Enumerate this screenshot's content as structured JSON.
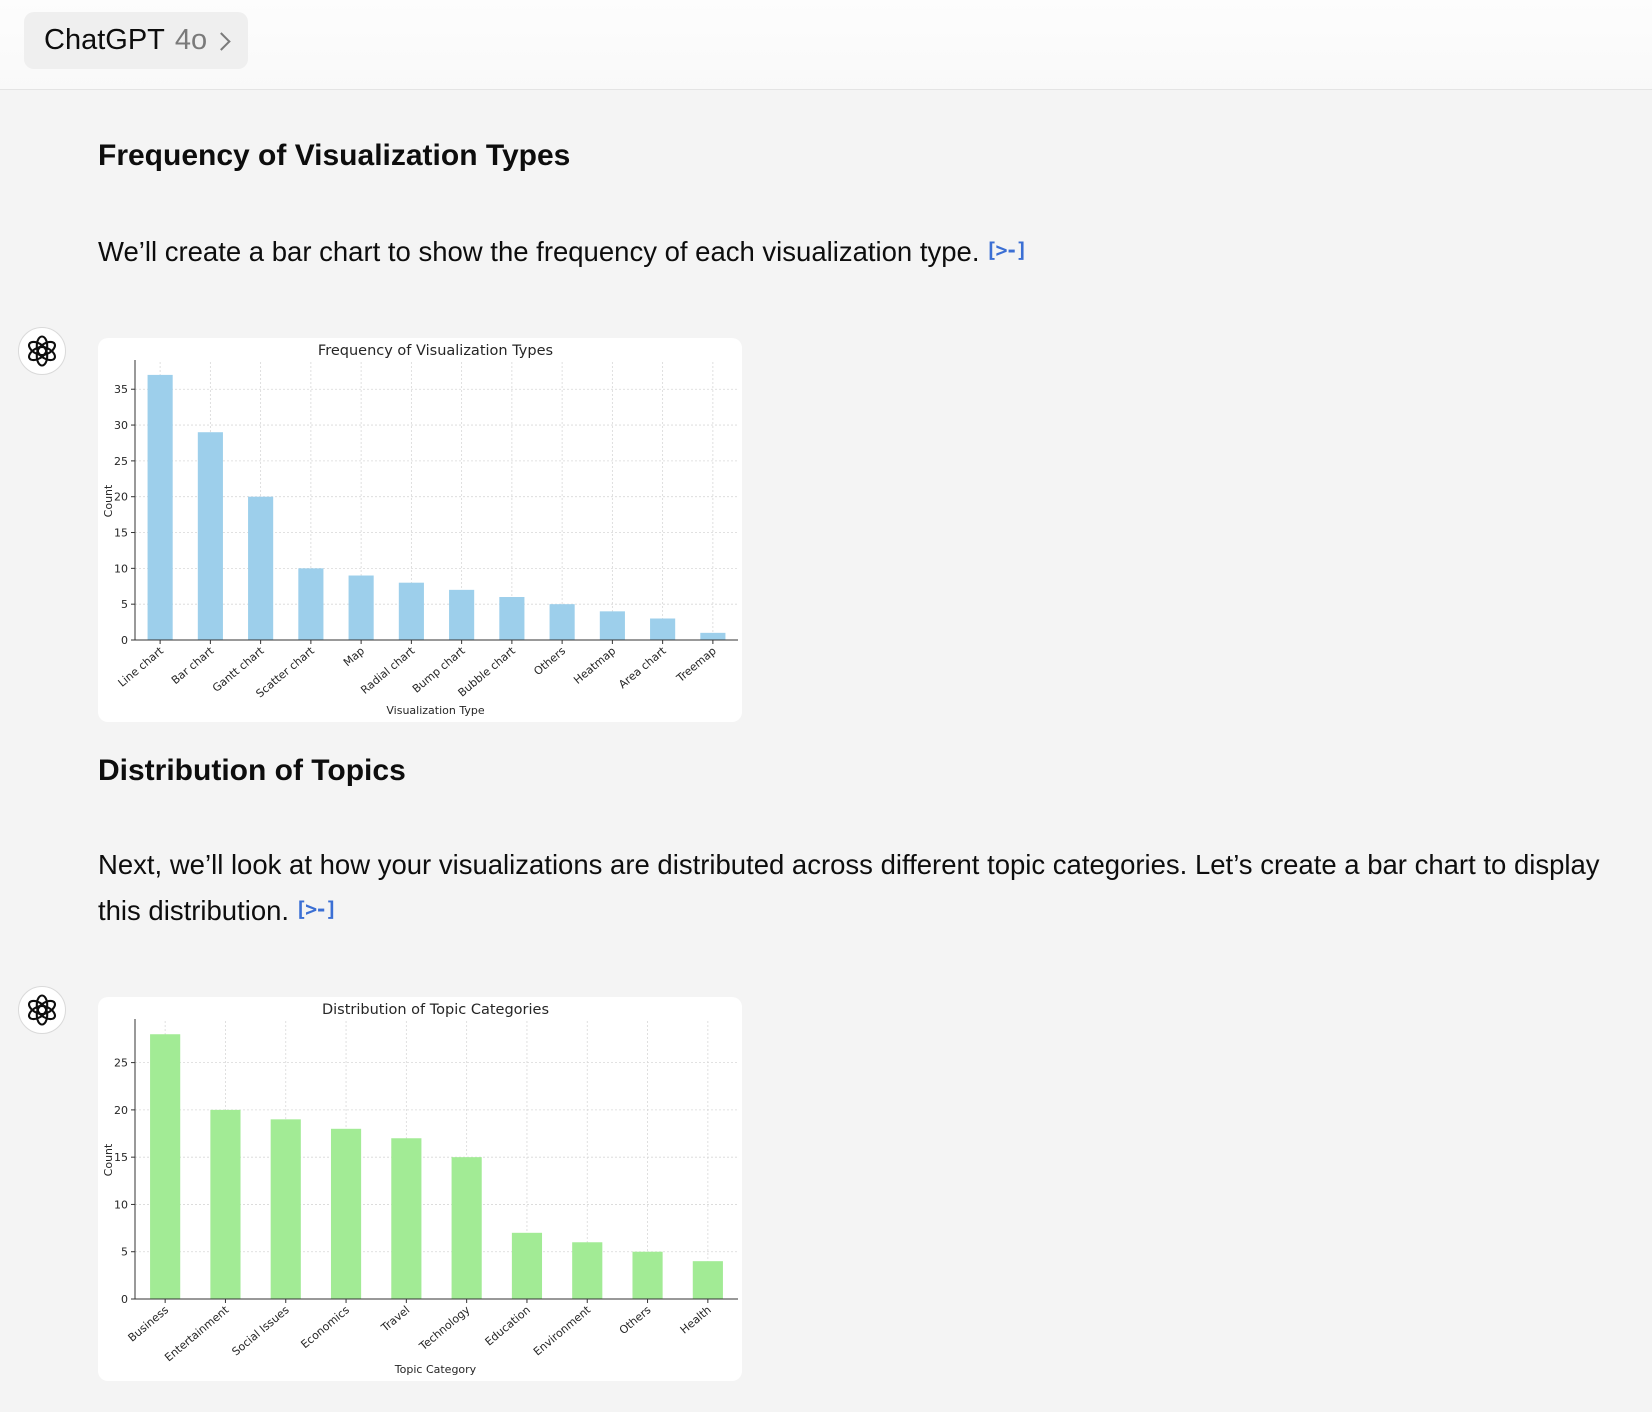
{
  "header": {
    "model_name": "ChatGPT",
    "model_version": "4o"
  },
  "section1": {
    "heading": "Frequency of Visualization Types",
    "text": "We’ll create a bar chart to show the frequency of each visualization type."
  },
  "section2": {
    "heading": "Distribution of Topics",
    "text": "Next, we’ll look at how your visualizations are distributed across different topic categories. Let’s create a bar chart to display this distribution."
  },
  "icons": {
    "assistant_avatar": "openai-logo-icon",
    "code_link": "code-interpreter-icon"
  },
  "chart_data": [
    {
      "type": "bar",
      "title": "Frequency of Visualization Types",
      "xlabel": "Visualization Type",
      "ylabel": "Count",
      "categories": [
        "Line chart",
        "Bar chart",
        "Gantt chart",
        "Scatter chart",
        "Map",
        "Radial chart",
        "Bump chart",
        "Bubble chart",
        "Others",
        "Heatmap",
        "Area chart",
        "Treemap"
      ],
      "values": [
        37,
        29,
        20,
        10,
        9,
        8,
        7,
        6,
        5,
        4,
        3,
        1
      ],
      "yticks": [
        0,
        5,
        10,
        15,
        20,
        25,
        30,
        35
      ],
      "ylim": [
        0,
        38.8
      ],
      "grid": true,
      "color": "#9dcfeb"
    },
    {
      "type": "bar",
      "title": "Distribution of Topic Categories",
      "xlabel": "Topic Category",
      "ylabel": "Count",
      "categories": [
        "Business",
        "Entertainment",
        "Social Issues",
        "Economics",
        "Travel",
        "Technology",
        "Education",
        "Environment",
        "Others",
        "Health"
      ],
      "values": [
        28,
        20,
        19,
        18,
        17,
        15,
        7,
        6,
        5,
        4
      ],
      "yticks": [
        0,
        5,
        10,
        15,
        20,
        25
      ],
      "ylim": [
        0,
        29.4
      ],
      "grid": true,
      "color": "#a2eb95"
    }
  ]
}
